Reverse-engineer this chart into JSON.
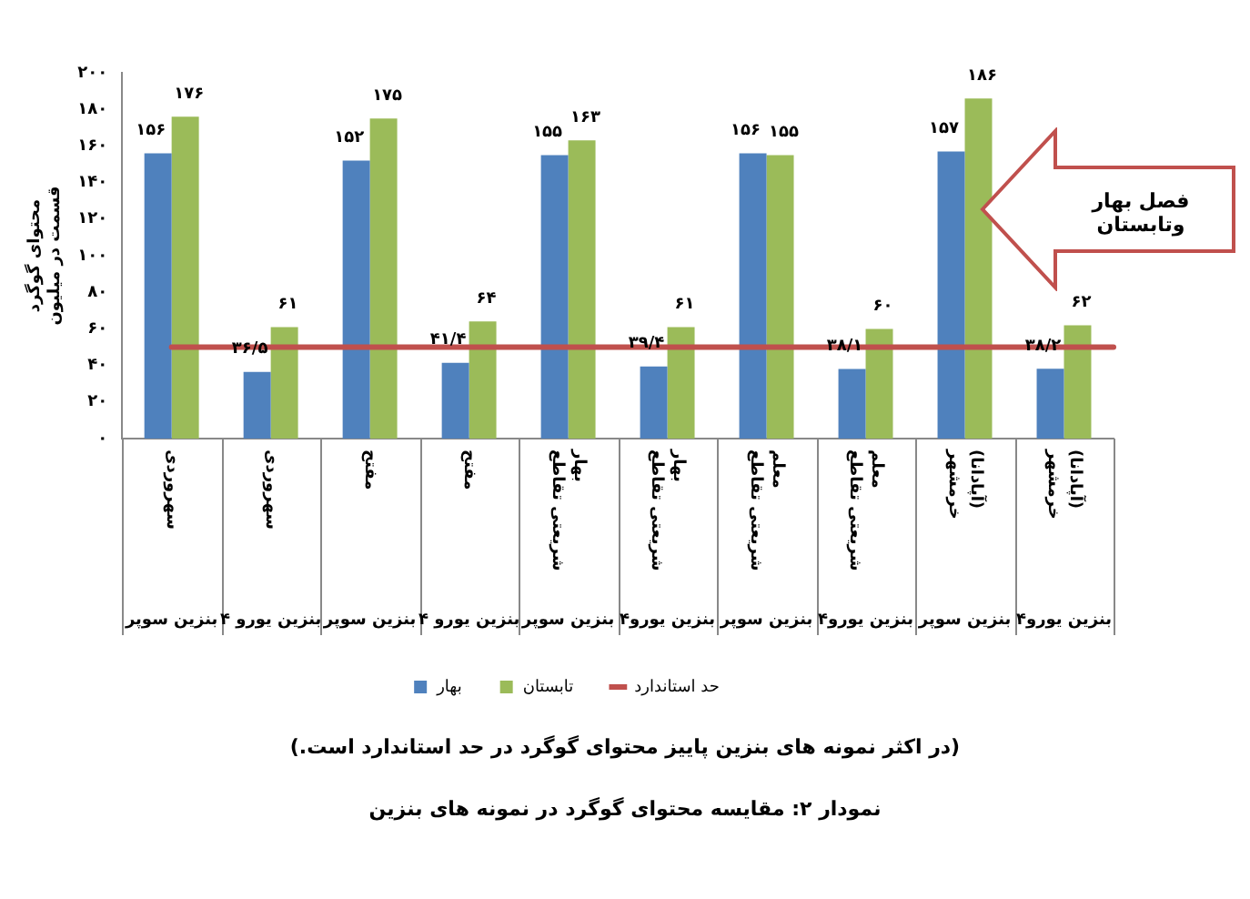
{
  "chart_data": {
    "type": "bar",
    "categories": [
      "بنزین سوپر\nسهروردی",
      "بنزین یورو ۴\nسهروردی",
      "بنزین سوپر\nمفتح",
      "بنزین یورو ۴\nمفتح",
      "بنزین سوپر\nشریعتی تقاطع بهار",
      "بنزین یورو۴\nشریعتی تقاطع بهار",
      "بنزین سوپر\nشریعتی تقاطع معلم",
      "بنزین یورو۴\nشریعتی تقاطع معلم",
      "بنزین سوپر\nخرمشهر (آپادانا)",
      "بنزین یورو۴\nخرمشهر (آپادانا)"
    ],
    "series": [
      {
        "name": "بهار",
        "color": "#4f81bd",
        "values": [
          156,
          36.5,
          152,
          41.4,
          155,
          39.4,
          156,
          38.1,
          157,
          38.2
        ],
        "value_labels": [
          "۱۵۶",
          "۳۶/۵",
          "۱۵۲",
          "۴۱/۴",
          "۱۵۵",
          "۳۹/۴",
          "۱۵۶",
          "۳۸/۱",
          "۱۵۷",
          "۳۸/۲"
        ]
      },
      {
        "name": "تابستان",
        "color": "#9bbb59",
        "values": [
          176,
          61,
          175,
          64,
          163,
          61,
          155,
          60,
          186,
          62
        ],
        "value_labels": [
          "۱۷۶",
          "۶۱",
          "۱۷۵",
          "۶۴",
          "۱۶۳",
          "۶۱",
          "۱۵۵",
          "۶۰",
          "۱۸۶",
          "۶۲"
        ]
      }
    ],
    "ref_lines": [
      {
        "axis": "y",
        "value": 50,
        "label": "حد استاندارد",
        "color": "#c0504d"
      }
    ],
    "ylabel": "محتوای گوگرد\nقسمت در میلیون",
    "ylim": [
      0,
      200
    ],
    "yticks": [
      {
        "value": 0,
        "label": "۰"
      },
      {
        "value": 20,
        "label": "۲۰"
      },
      {
        "value": 40,
        "label": "۴۰"
      },
      {
        "value": 60,
        "label": "۶۰"
      },
      {
        "value": 80,
        "label": "۸۰"
      },
      {
        "value": 100,
        "label": "۱۰۰"
      },
      {
        "value": 120,
        "label": "۱۲۰"
      },
      {
        "value": 140,
        "label": "۱۴۰"
      },
      {
        "value": 160,
        "label": "۱۶۰"
      },
      {
        "value": 180,
        "label": "۱۸۰"
      },
      {
        "value": 200,
        "label": "۲۰۰"
      }
    ],
    "grid": false,
    "legend": "bottom",
    "annotations": [
      "فصل بهار وتابستان",
      "(در اکثر نمونه های بنزین پاییز محتوای گوگرد در حد استاندارد است.)",
      "نمودار ۲: مقایسه محتوای گوگرد در نمونه های بنزین"
    ]
  }
}
